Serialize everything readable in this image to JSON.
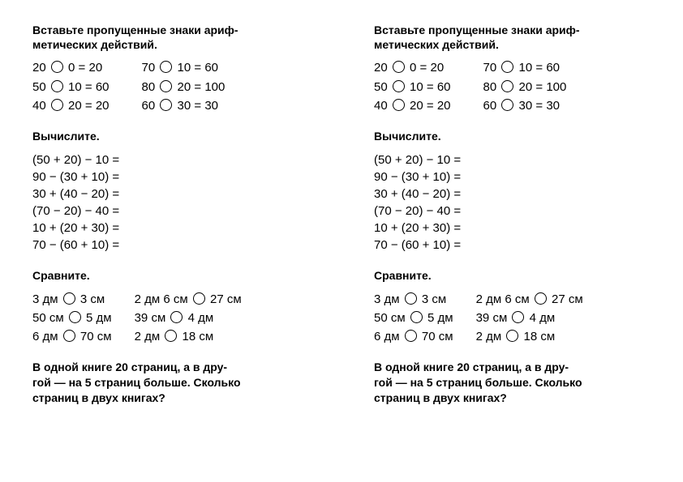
{
  "worksheet": {
    "section1": {
      "title": "Вставьте пропущенные знаки ариф-\nметических действий.",
      "left": [
        {
          "a": "20",
          "b": "0",
          "r": "20"
        },
        {
          "a": "50",
          "b": "10",
          "r": "60"
        },
        {
          "a": "40",
          "b": "20",
          "r": "20"
        }
      ],
      "right": [
        {
          "a": "70",
          "b": "10",
          "r": "60"
        },
        {
          "a": "80",
          "b": "20",
          "r": "100"
        },
        {
          "a": "60",
          "b": "30",
          "r": "30"
        }
      ]
    },
    "section2": {
      "title": "Вычислите.",
      "lines": [
        "(50 + 20) − 10 =",
        "90 − (30 + 10) =",
        "30 + (40 − 20) =",
        "(70 − 20) − 40 =",
        "10 + (20 + 30) =",
        "70 − (60 + 10) ="
      ]
    },
    "section3": {
      "title": "Сравните.",
      "left": [
        {
          "a": "3 дм",
          "b": "3 см"
        },
        {
          "a": "50 см",
          "b": "5 дм"
        },
        {
          "a": "6 дм",
          "b": "70 см"
        }
      ],
      "right": [
        {
          "a": "2 дм 6 см",
          "b": "27 см"
        },
        {
          "a": "39 см",
          "b": "4 дм"
        },
        {
          "a": "2 дм",
          "b": "18 см"
        }
      ]
    },
    "section4": {
      "text": "В одной книге 20 страниц, а в дру-\nгой — на 5 страниц больше. Сколько\nстраниц в двух книгах?"
    }
  },
  "colors": {
    "background": "#ffffff",
    "text": "#000000",
    "circle_border": "#000000"
  },
  "typography": {
    "title_fontsize": 14,
    "body_fontsize": 15,
    "font_family": "Arial"
  }
}
